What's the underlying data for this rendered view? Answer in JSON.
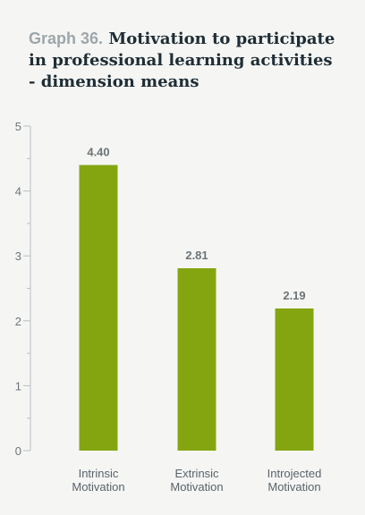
{
  "title": {
    "label": "Graph 36.",
    "text": "Motivation to participate in professional learning activities - dimension means"
  },
  "colors": {
    "bar": "#85a510",
    "axis": "#b8bec2",
    "background": "#f5f6f4"
  },
  "chart_data": {
    "type": "bar",
    "title": "Motivation to participate in professional learning activities - dimension means",
    "xlabel": "",
    "ylabel": "",
    "categories": [
      [
        "Intrinsic",
        "Motivation"
      ],
      [
        "Extrinsic",
        "Motivation"
      ],
      [
        "Introjected",
        "Motivation"
      ]
    ],
    "values": [
      4.4,
      2.81,
      2.19
    ],
    "value_labels": [
      "4.40",
      "2.81",
      "2.19"
    ],
    "ylim": [
      0,
      5
    ],
    "yticks": [
      0,
      1,
      2,
      3,
      4,
      5
    ],
    "grid": false,
    "legend": "none"
  }
}
